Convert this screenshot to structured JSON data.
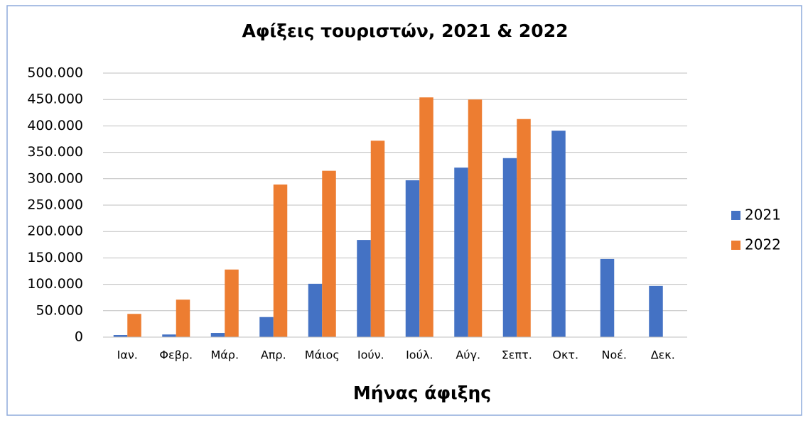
{
  "chart_data": {
    "type": "bar",
    "title": "Αφίξεις τουριστών, 2021 & 2022",
    "x_label": "Μήνας άφιξης",
    "categories": [
      "Ιαν.",
      "Φεβρ.",
      "Μάρ.",
      "Απρ.",
      "Μάιος",
      "Ιούν.",
      "Ιούλ.",
      "Αύγ.",
      "Σεπτ.",
      "Οκτ.",
      "Νοέ.",
      "Δεκ."
    ],
    "series": [
      {
        "name": "2021",
        "color": "#4472c4",
        "values": [
          4000,
          5000,
          8000,
          38000,
          101000,
          184000,
          297000,
          321000,
          339000,
          391000,
          148000,
          97000
        ]
      },
      {
        "name": "2022",
        "color": "#ed7d31",
        "values": [
          44000,
          71000,
          128000,
          289000,
          315000,
          372000,
          454000,
          450000,
          413000,
          null,
          null,
          null
        ]
      }
    ],
    "ylim": [
      0,
      500000
    ],
    "yticks": [
      0,
      {
        "value": 50000,
        "label": "50.000"
      },
      {
        "value": 100000,
        "label": "100.000"
      },
      {
        "value": 150000,
        "label": "150.000"
      },
      {
        "value": 200000,
        "label": "200.000"
      },
      {
        "value": 250000,
        "label": "250.000"
      },
      {
        "value": 300000,
        "label": "300.000"
      },
      {
        "value": 350000,
        "label": "350.000"
      },
      {
        "value": 400000,
        "label": "400.000"
      },
      {
        "value": 450000,
        "label": "450.000"
      },
      {
        "value": 500000,
        "label": "500.000"
      }
    ],
    "grid": true,
    "legend": "right"
  }
}
